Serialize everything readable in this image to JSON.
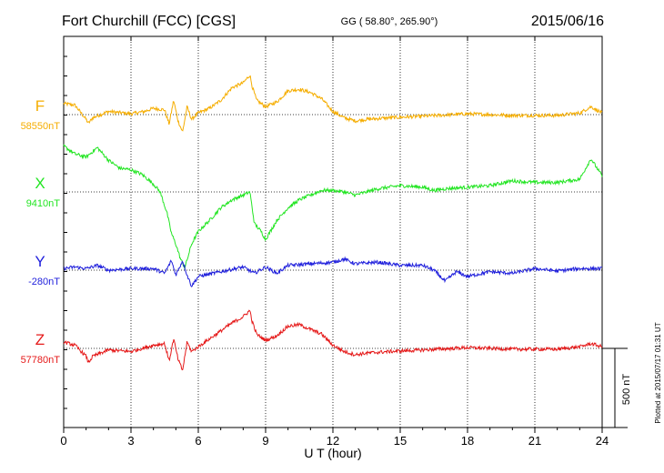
{
  "header": {
    "station": "Fort Churchill (FCC)  [CGS]",
    "coords": "GG ( 58.80°, 265.90°)",
    "date": "2015/06/16"
  },
  "plotted_note": "Plotted at 2015/07/17 01:31  UT",
  "chart_data": {
    "type": "line",
    "title": "Fort Churchill (FCC)  [CGS]",
    "xlabel": "U T (hour)",
    "ylabel": "",
    "xlim": [
      0,
      24
    ],
    "x_ticks": [
      "0",
      "3",
      "6",
      "9",
      "12",
      "15",
      "18",
      "21",
      "24"
    ],
    "scale_bar": {
      "label": "500 nT",
      "value_nT": 500
    },
    "baseline_spacing_nT": 429,
    "series": [
      {
        "name": "F",
        "baseline_label": "58550nT",
        "color": "#f5ad00",
        "x": [
          0,
          0.5,
          1.0,
          1.1,
          1.3,
          2.0,
          3.0,
          3.6,
          4.0,
          4.5,
          4.7,
          4.9,
          5.1,
          5.3,
          5.5,
          5.7,
          6.0,
          6.5,
          7.0,
          7.5,
          8.0,
          8.3,
          8.4,
          8.6,
          9.0,
          9.5,
          10.0,
          10.5,
          11.0,
          11.5,
          12.0,
          12.5,
          13.0,
          13.5,
          14.5,
          16.0,
          18.0,
          20.0,
          22.0,
          23.0,
          23.5,
          24.0
        ],
        "values": [
          70,
          60,
          -30,
          -55,
          -20,
          20,
          5,
          20,
          40,
          30,
          -60,
          90,
          -40,
          -110,
          50,
          -30,
          10,
          40,
          90,
          170,
          200,
          250,
          180,
          90,
          50,
          80,
          150,
          160,
          140,
          100,
          20,
          -20,
          -40,
          -30,
          -20,
          -10,
          5,
          -5,
          -5,
          10,
          50,
          10
        ]
      },
      {
        "name": "X",
        "baseline_label": "9410nT",
        "color": "#22e522",
        "x": [
          0,
          0.5,
          1.0,
          1.5,
          2.0,
          2.5,
          3.0,
          3.5,
          4.0,
          4.3,
          4.6,
          4.8,
          5.0,
          5.2,
          5.4,
          5.7,
          6.0,
          6.5,
          7.0,
          7.5,
          8.0,
          8.3,
          8.5,
          8.8,
          9.0,
          9.5,
          10.0,
          10.5,
          11.0,
          11.5,
          12.0,
          12.5,
          13.0,
          14.0,
          15.0,
          16.0,
          16.5,
          17.0,
          18.0,
          19.0,
          20.0,
          21.0,
          22.0,
          23.0,
          23.5,
          24.0
        ],
        "values": [
          290,
          240,
          220,
          280,
          200,
          150,
          140,
          110,
          50,
          0,
          -130,
          -260,
          -330,
          -420,
          -480,
          -330,
          -250,
          -180,
          -100,
          -50,
          -20,
          0,
          -200,
          -250,
          -300,
          -180,
          -100,
          -50,
          -20,
          10,
          10,
          0,
          -20,
          20,
          40,
          30,
          10,
          20,
          30,
          40,
          70,
          60,
          60,
          80,
          210,
          100
        ]
      },
      {
        "name": "Y",
        "baseline_label": "-280nT",
        "color": "#1f1fdc",
        "x": [
          0,
          0.5,
          1.0,
          1.5,
          2.0,
          3.0,
          4.0,
          4.5,
          4.8,
          5.0,
          5.3,
          5.5,
          5.7,
          6.0,
          7.0,
          8.0,
          8.5,
          9.0,
          9.5,
          10.0,
          11.0,
          12.0,
          12.5,
          13.0,
          14.0,
          15.0,
          16.0,
          16.5,
          17.0,
          17.5,
          18.0,
          19.0,
          20.0,
          21.0,
          22.0,
          23.0,
          24.0
        ],
        "values": [
          10,
          20,
          10,
          30,
          0,
          10,
          10,
          -20,
          60,
          -30,
          60,
          -30,
          -100,
          -40,
          -10,
          20,
          -20,
          20,
          -20,
          30,
          40,
          50,
          70,
          40,
          50,
          30,
          30,
          0,
          -70,
          -10,
          -40,
          -10,
          -20,
          10,
          -5,
          10,
          10
        ]
      },
      {
        "name": "Z",
        "baseline_label": "57780nT",
        "color": "#e51919",
        "x": [
          0,
          0.5,
          1.0,
          1.1,
          1.3,
          2.0,
          3.0,
          3.5,
          4.0,
          4.5,
          4.7,
          4.9,
          5.1,
          5.3,
          5.5,
          5.7,
          6.0,
          6.5,
          7.0,
          7.5,
          8.0,
          8.3,
          8.4,
          8.6,
          9.0,
          9.5,
          10.0,
          10.5,
          11.0,
          11.5,
          12.0,
          12.5,
          13.0,
          13.5,
          14.5,
          16.0,
          18.0,
          20.0,
          22.0,
          23.0,
          23.5,
          24.0
        ],
        "values": [
          40,
          20,
          -50,
          -90,
          -50,
          -10,
          -20,
          0,
          20,
          30,
          -80,
          60,
          -70,
          -140,
          40,
          -20,
          10,
          60,
          110,
          160,
          200,
          240,
          170,
          90,
          50,
          80,
          140,
          150,
          120,
          90,
          20,
          -20,
          -40,
          -30,
          -20,
          -10,
          5,
          -5,
          -5,
          10,
          30,
          10
        ]
      }
    ]
  }
}
